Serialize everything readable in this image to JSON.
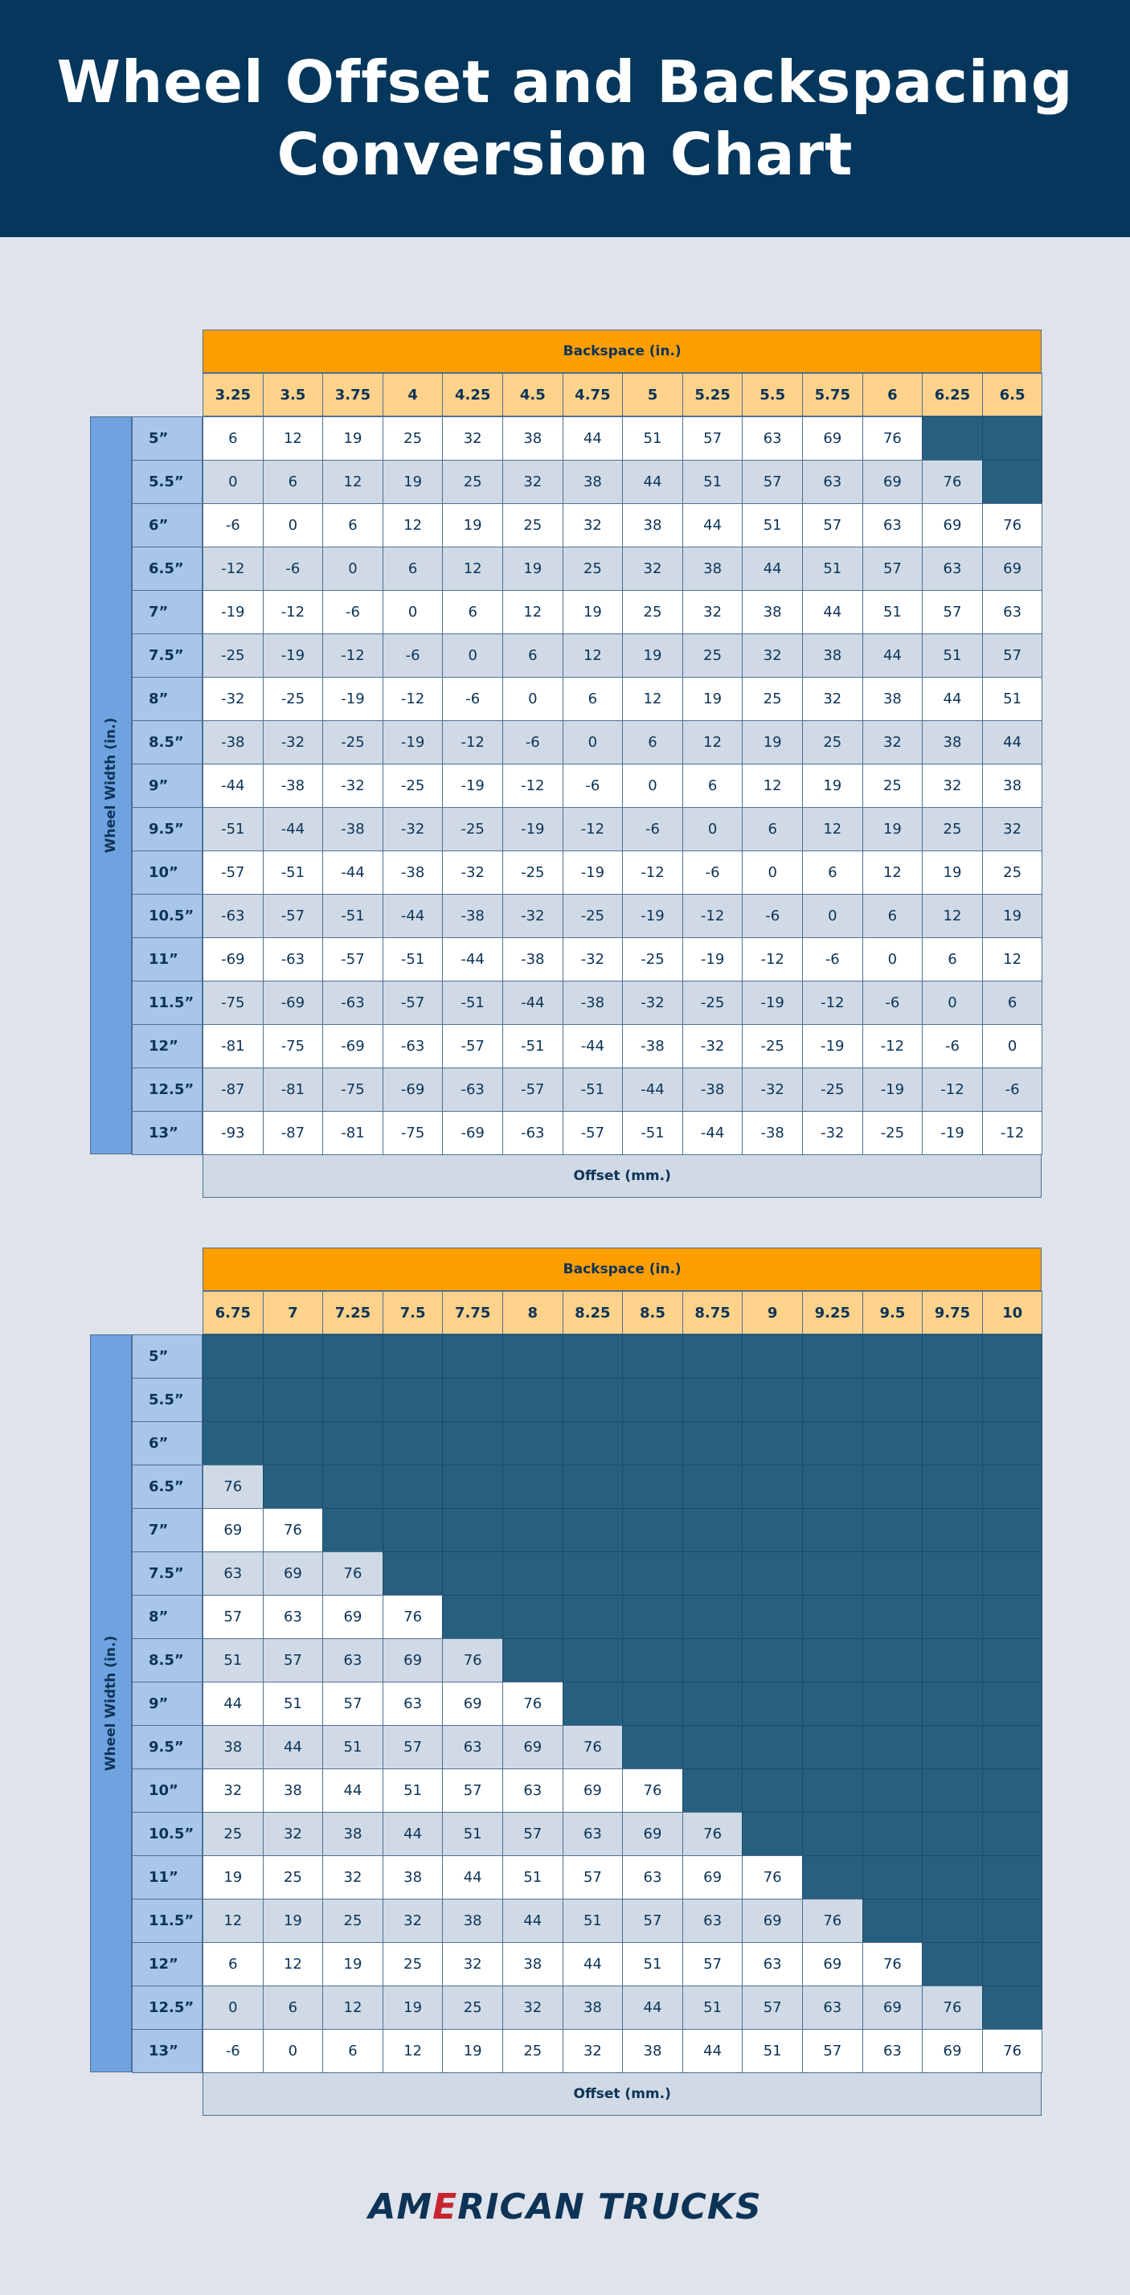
{
  "header": {
    "title_line1": "Wheel Offset and Backspacing",
    "title_line2": "Conversion Chart"
  },
  "logo": {
    "pre": "AM",
    "accent": "E",
    "post": "RICAN TRUCKS"
  },
  "colors": {
    "header_bg": "#05375c",
    "page_bg": "#dfe3eb",
    "backspace_bar": "#fd9e02",
    "backspace_headers": "#fdd38c",
    "wheel_width_bar": "#6ea3e0",
    "row_headers": "#a8c5ea",
    "cell_light": "#ffffff",
    "cell_shaded": "#cfdae6",
    "cell_empty": "#275f80",
    "text": "#0d3356",
    "logo_accent": "#c8242f"
  },
  "chart_data": [
    {
      "type": "table",
      "column_group_label": "Backspace (in.)",
      "row_group_label": "Wheel Width (in.)",
      "value_label": "Offset (mm.)",
      "columns": [
        "3.25",
        "3.5",
        "3.75",
        "4",
        "4.25",
        "4.5",
        "4.75",
        "5",
        "5.25",
        "5.5",
        "5.75",
        "6",
        "6.25",
        "6.5"
      ],
      "rows": [
        "5”",
        "5.5”",
        "6”",
        "6.5”",
        "7”",
        "7.5”",
        "8”",
        "8.5”",
        "9”",
        "9.5”",
        "10”",
        "10.5”",
        "11”",
        "11.5”",
        "12”",
        "12.5”",
        "13”"
      ],
      "values": [
        [
          6,
          12,
          19,
          25,
          32,
          38,
          44,
          51,
          57,
          63,
          69,
          76,
          null,
          null
        ],
        [
          0,
          6,
          12,
          19,
          25,
          32,
          38,
          44,
          51,
          57,
          63,
          69,
          76,
          null
        ],
        [
          -6,
          0,
          6,
          12,
          19,
          25,
          32,
          38,
          44,
          51,
          57,
          63,
          69,
          76
        ],
        [
          -12,
          -6,
          0,
          6,
          12,
          19,
          25,
          32,
          38,
          44,
          51,
          57,
          63,
          69
        ],
        [
          -19,
          -12,
          -6,
          0,
          6,
          12,
          19,
          25,
          32,
          38,
          44,
          51,
          57,
          63
        ],
        [
          -25,
          -19,
          -12,
          -6,
          0,
          6,
          12,
          19,
          25,
          32,
          38,
          44,
          51,
          57
        ],
        [
          -32,
          -25,
          -19,
          -12,
          -6,
          0,
          6,
          12,
          19,
          25,
          32,
          38,
          44,
          51
        ],
        [
          -38,
          -32,
          -25,
          -19,
          -12,
          -6,
          0,
          6,
          12,
          19,
          25,
          32,
          38,
          44
        ],
        [
          -44,
          -38,
          -32,
          -25,
          -19,
          -12,
          -6,
          0,
          6,
          12,
          19,
          25,
          32,
          38
        ],
        [
          -51,
          -44,
          -38,
          -32,
          -25,
          -19,
          -12,
          -6,
          0,
          6,
          12,
          19,
          25,
          32
        ],
        [
          -57,
          -51,
          -44,
          -38,
          -32,
          -25,
          -19,
          -12,
          -6,
          0,
          6,
          12,
          19,
          25
        ],
        [
          -63,
          -57,
          -51,
          -44,
          -38,
          -32,
          -25,
          -19,
          -12,
          -6,
          0,
          6,
          12,
          19
        ],
        [
          -69,
          -63,
          -57,
          -51,
          -44,
          -38,
          -32,
          -25,
          -19,
          -12,
          -6,
          0,
          6,
          12
        ],
        [
          -75,
          -69,
          -63,
          -57,
          -51,
          -44,
          -38,
          -32,
          -25,
          -19,
          -12,
          -6,
          0,
          6
        ],
        [
          -81,
          -75,
          -69,
          -63,
          -57,
          -51,
          -44,
          -38,
          -32,
          -25,
          -19,
          -12,
          -6,
          0
        ],
        [
          -87,
          -81,
          -75,
          -69,
          -63,
          -57,
          -51,
          -44,
          -38,
          -32,
          -25,
          -19,
          -12,
          -6
        ],
        [
          -93,
          -87,
          -81,
          -75,
          -69,
          -63,
          -57,
          -51,
          -44,
          -38,
          -32,
          -25,
          -19,
          -12
        ]
      ]
    },
    {
      "type": "table",
      "column_group_label": "Backspace (in.)",
      "row_group_label": "Wheel Width (in.)",
      "value_label": "Offset (mm.)",
      "columns": [
        "6.75",
        "7",
        "7.25",
        "7.5",
        "7.75",
        "8",
        "8.25",
        "8.5",
        "8.75",
        "9",
        "9.25",
        "9.5",
        "9.75",
        "10"
      ],
      "rows": [
        "5”",
        "5.5”",
        "6”",
        "6.5”",
        "7”",
        "7.5”",
        "8”",
        "8.5”",
        "9”",
        "9.5”",
        "10”",
        "10.5”",
        "11”",
        "11.5”",
        "12”",
        "12.5”",
        "13”"
      ],
      "values": [
        [
          null,
          null,
          null,
          null,
          null,
          null,
          null,
          null,
          null,
          null,
          null,
          null,
          null,
          null
        ],
        [
          null,
          null,
          null,
          null,
          null,
          null,
          null,
          null,
          null,
          null,
          null,
          null,
          null,
          null
        ],
        [
          null,
          null,
          null,
          null,
          null,
          null,
          null,
          null,
          null,
          null,
          null,
          null,
          null,
          null
        ],
        [
          76,
          null,
          null,
          null,
          null,
          null,
          null,
          null,
          null,
          null,
          null,
          null,
          null,
          null
        ],
        [
          69,
          76,
          null,
          null,
          null,
          null,
          null,
          null,
          null,
          null,
          null,
          null,
          null,
          null
        ],
        [
          63,
          69,
          76,
          null,
          null,
          null,
          null,
          null,
          null,
          null,
          null,
          null,
          null,
          null
        ],
        [
          57,
          63,
          69,
          76,
          null,
          null,
          null,
          null,
          null,
          null,
          null,
          null,
          null,
          null
        ],
        [
          51,
          57,
          63,
          69,
          76,
          null,
          null,
          null,
          null,
          null,
          null,
          null,
          null,
          null
        ],
        [
          44,
          51,
          57,
          63,
          69,
          76,
          null,
          null,
          null,
          null,
          null,
          null,
          null,
          null
        ],
        [
          38,
          44,
          51,
          57,
          63,
          69,
          76,
          null,
          null,
          null,
          null,
          null,
          null,
          null
        ],
        [
          32,
          38,
          44,
          51,
          57,
          63,
          69,
          76,
          null,
          null,
          null,
          null,
          null,
          null
        ],
        [
          25,
          32,
          38,
          44,
          51,
          57,
          63,
          69,
          76,
          null,
          null,
          null,
          null,
          null
        ],
        [
          19,
          25,
          32,
          38,
          44,
          51,
          57,
          63,
          69,
          76,
          null,
          null,
          null,
          null
        ],
        [
          12,
          19,
          25,
          32,
          38,
          44,
          51,
          57,
          63,
          69,
          76,
          null,
          null,
          null
        ],
        [
          6,
          12,
          19,
          25,
          32,
          38,
          44,
          51,
          57,
          63,
          69,
          76,
          null,
          null
        ],
        [
          0,
          6,
          12,
          19,
          25,
          32,
          38,
          44,
          51,
          57,
          63,
          69,
          76,
          null
        ],
        [
          -6,
          0,
          6,
          12,
          19,
          25,
          32,
          38,
          44,
          51,
          57,
          63,
          69,
          76
        ]
      ]
    }
  ]
}
